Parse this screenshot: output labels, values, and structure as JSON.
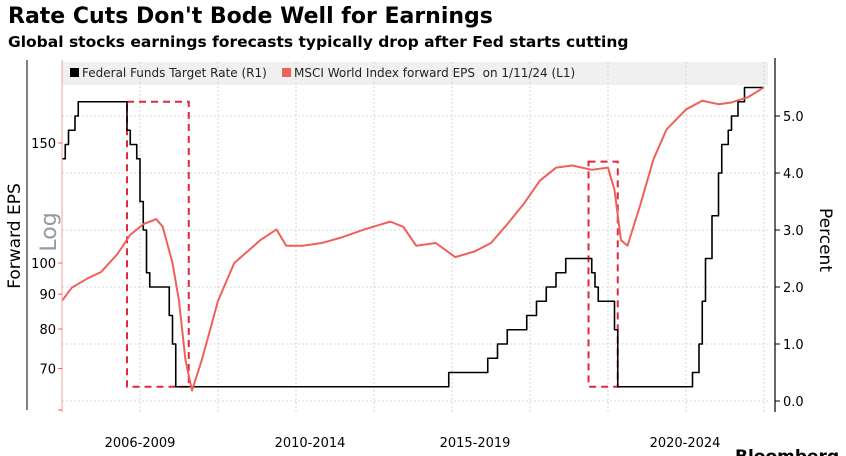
{
  "title": "Rate Cuts Don't Bode Well for Earnings",
  "subtitle": "Global stocks earnings forecasts typically drop after Fed starts cutting",
  "source_logo": "Bloomberg",
  "colors": {
    "fed": "#000000",
    "eps": "#f0605a",
    "cut_box": "#e0283c",
    "grid": "#c8c8c8",
    "legend_bg": "#f0f0f0"
  },
  "chart_data": {
    "type": "line",
    "grid": true,
    "legend_position": "top",
    "legend": [
      {
        "label": "Federal Funds Target Rate (R1)",
        "color": "#000000"
      },
      {
        "label": "MSCI World Index forward EPS  on 1/11/24 (L1)",
        "color": "#f0605a"
      }
    ],
    "x_range": [
      "2006-01",
      "2024-01"
    ],
    "x_tick_labels": [
      "2006-2009",
      "2010-2014",
      "2015-2019",
      "2020-2024"
    ],
    "left_axis": {
      "label": "Forward EPS",
      "scale": "log",
      "scale_label": "Log",
      "range": [
        61,
        198
      ],
      "ticks": [
        70,
        80,
        90,
        100,
        150
      ]
    },
    "right_axis": {
      "label": "Percent",
      "range": [
        -0.16,
        6.0
      ],
      "ticks": [
        "0.0",
        "1.0",
        "2.0",
        "3.0",
        "4.0",
        "5.0"
      ]
    },
    "series": [
      {
        "name": "Federal Funds Target Rate (R1)",
        "axis": "right",
        "step": true,
        "points": [
          [
            "2006-01",
            4.25
          ],
          [
            "2006-02",
            4.5
          ],
          [
            "2006-03",
            4.75
          ],
          [
            "2006-05",
            5.0
          ],
          [
            "2006-06",
            5.25
          ],
          [
            "2007-09",
            4.75
          ],
          [
            "2007-10",
            4.5
          ],
          [
            "2007-12",
            4.25
          ],
          [
            "2008-01",
            3.5
          ],
          [
            "2008-02",
            3.0
          ],
          [
            "2008-03",
            2.25
          ],
          [
            "2008-04",
            2.0
          ],
          [
            "2008-10",
            1.5
          ],
          [
            "2008-11",
            1.0
          ],
          [
            "2008-12",
            0.25
          ],
          [
            "2015-12",
            0.5
          ],
          [
            "2016-12",
            0.75
          ],
          [
            "2017-03",
            1.0
          ],
          [
            "2017-06",
            1.25
          ],
          [
            "2017-12",
            1.5
          ],
          [
            "2018-03",
            1.75
          ],
          [
            "2018-06",
            2.0
          ],
          [
            "2018-09",
            2.25
          ],
          [
            "2018-12",
            2.5
          ],
          [
            "2019-08",
            2.25
          ],
          [
            "2019-09",
            2.0
          ],
          [
            "2019-10",
            1.75
          ],
          [
            "2020-03",
            1.25
          ],
          [
            "2020-04",
            0.25
          ],
          [
            "2022-03",
            0.5
          ],
          [
            "2022-05",
            1.0
          ],
          [
            "2022-06",
            1.75
          ],
          [
            "2022-07",
            2.5
          ],
          [
            "2022-09",
            3.25
          ],
          [
            "2022-11",
            4.0
          ],
          [
            "2022-12",
            4.5
          ],
          [
            "2023-02",
            4.75
          ],
          [
            "2023-03",
            5.0
          ],
          [
            "2023-05",
            5.25
          ],
          [
            "2023-07",
            5.5
          ],
          [
            "2024-01",
            5.5
          ]
        ]
      },
      {
        "name": "MSCI World Index forward EPS  on 1/11/24 (L1)",
        "axis": "left",
        "points": [
          [
            "2006-01",
            88
          ],
          [
            "2006-04",
            92
          ],
          [
            "2006-09",
            95
          ],
          [
            "2007-01",
            97
          ],
          [
            "2007-06",
            103
          ],
          [
            "2007-10",
            110
          ],
          [
            "2008-02",
            114
          ],
          [
            "2008-06",
            116
          ],
          [
            "2008-08",
            113
          ],
          [
            "2008-11",
            100
          ],
          [
            "2009-01",
            88
          ],
          [
            "2009-03",
            72
          ],
          [
            "2009-05",
            65
          ],
          [
            "2009-08",
            72
          ],
          [
            "2010-01",
            88
          ],
          [
            "2010-06",
            100
          ],
          [
            "2011-02",
            108
          ],
          [
            "2011-07",
            112
          ],
          [
            "2011-10",
            106
          ],
          [
            "2012-03",
            106
          ],
          [
            "2012-09",
            107
          ],
          [
            "2013-03",
            109
          ],
          [
            "2013-10",
            112
          ],
          [
            "2014-06",
            115
          ],
          [
            "2014-10",
            113
          ],
          [
            "2015-02",
            106
          ],
          [
            "2015-08",
            107
          ],
          [
            "2016-02",
            102
          ],
          [
            "2016-08",
            104
          ],
          [
            "2017-01",
            107
          ],
          [
            "2017-06",
            114
          ],
          [
            "2017-11",
            122
          ],
          [
            "2018-04",
            132
          ],
          [
            "2018-09",
            138
          ],
          [
            "2019-02",
            139
          ],
          [
            "2019-08",
            137
          ],
          [
            "2020-01",
            138
          ],
          [
            "2020-03",
            128
          ],
          [
            "2020-05",
            108
          ],
          [
            "2020-07",
            106
          ],
          [
            "2020-11",
            122
          ],
          [
            "2021-03",
            142
          ],
          [
            "2021-07",
            157
          ],
          [
            "2022-01",
            168
          ],
          [
            "2022-06",
            173
          ],
          [
            "2022-11",
            171
          ],
          [
            "2023-03",
            172
          ],
          [
            "2023-08",
            175
          ],
          [
            "2024-01",
            181
          ]
        ]
      }
    ],
    "cut_periods": [
      {
        "start": "2007-09",
        "end": "2009-04",
        "range_percent": [
          0.25,
          5.25
        ]
      },
      {
        "start": "2019-07",
        "end": "2020-04",
        "range_percent": [
          0.25,
          4.2
        ]
      }
    ]
  }
}
